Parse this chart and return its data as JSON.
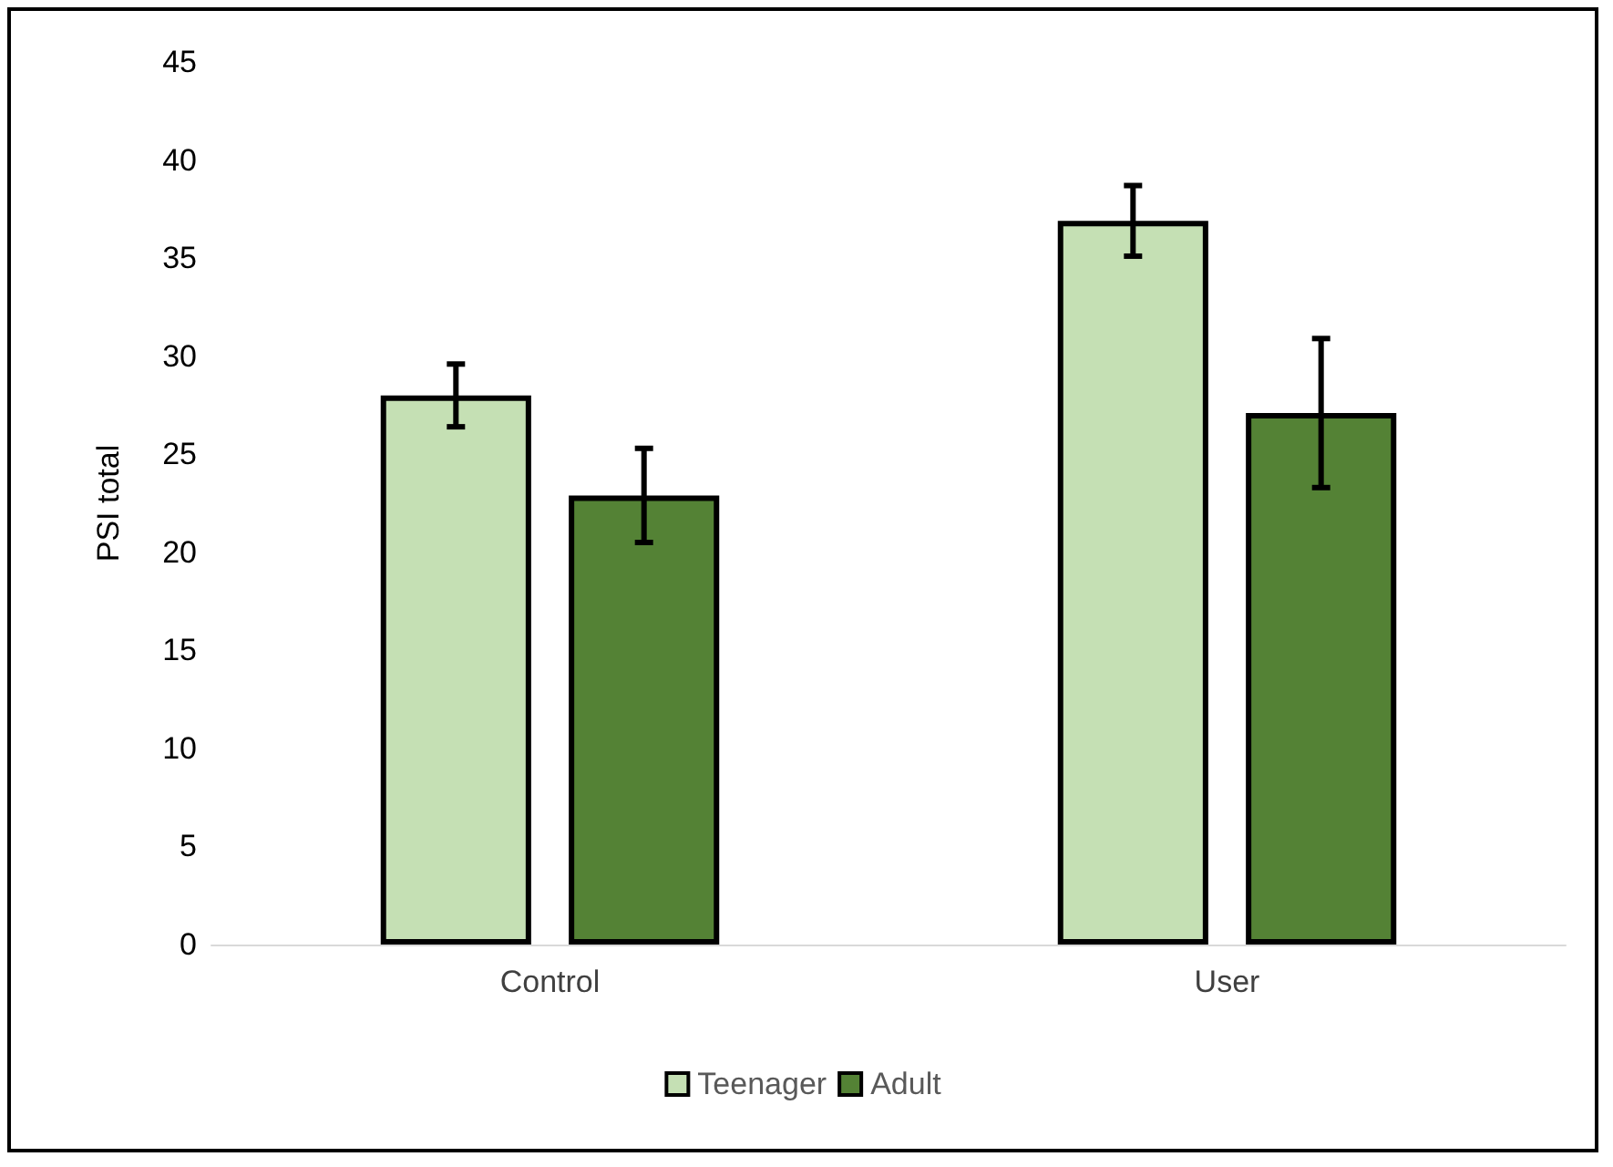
{
  "chart_data": {
    "type": "bar",
    "ylabel": "PSI total",
    "categories": [
      "Control",
      "User"
    ],
    "series": [
      {
        "name": "Teenager",
        "color": "#c5e0b4",
        "values": [
          28,
          36.9
        ],
        "errors": [
          1.6,
          1.8
        ]
      },
      {
        "name": "Adult",
        "color": "#548235",
        "values": [
          22.9,
          27.1
        ],
        "errors": [
          2.4,
          3.8
        ]
      }
    ],
    "ylim": [
      0,
      45
    ],
    "yticks": [
      0,
      5,
      10,
      15,
      20,
      25,
      30,
      35,
      40,
      45
    ],
    "grid": false,
    "legend": "bottom"
  }
}
